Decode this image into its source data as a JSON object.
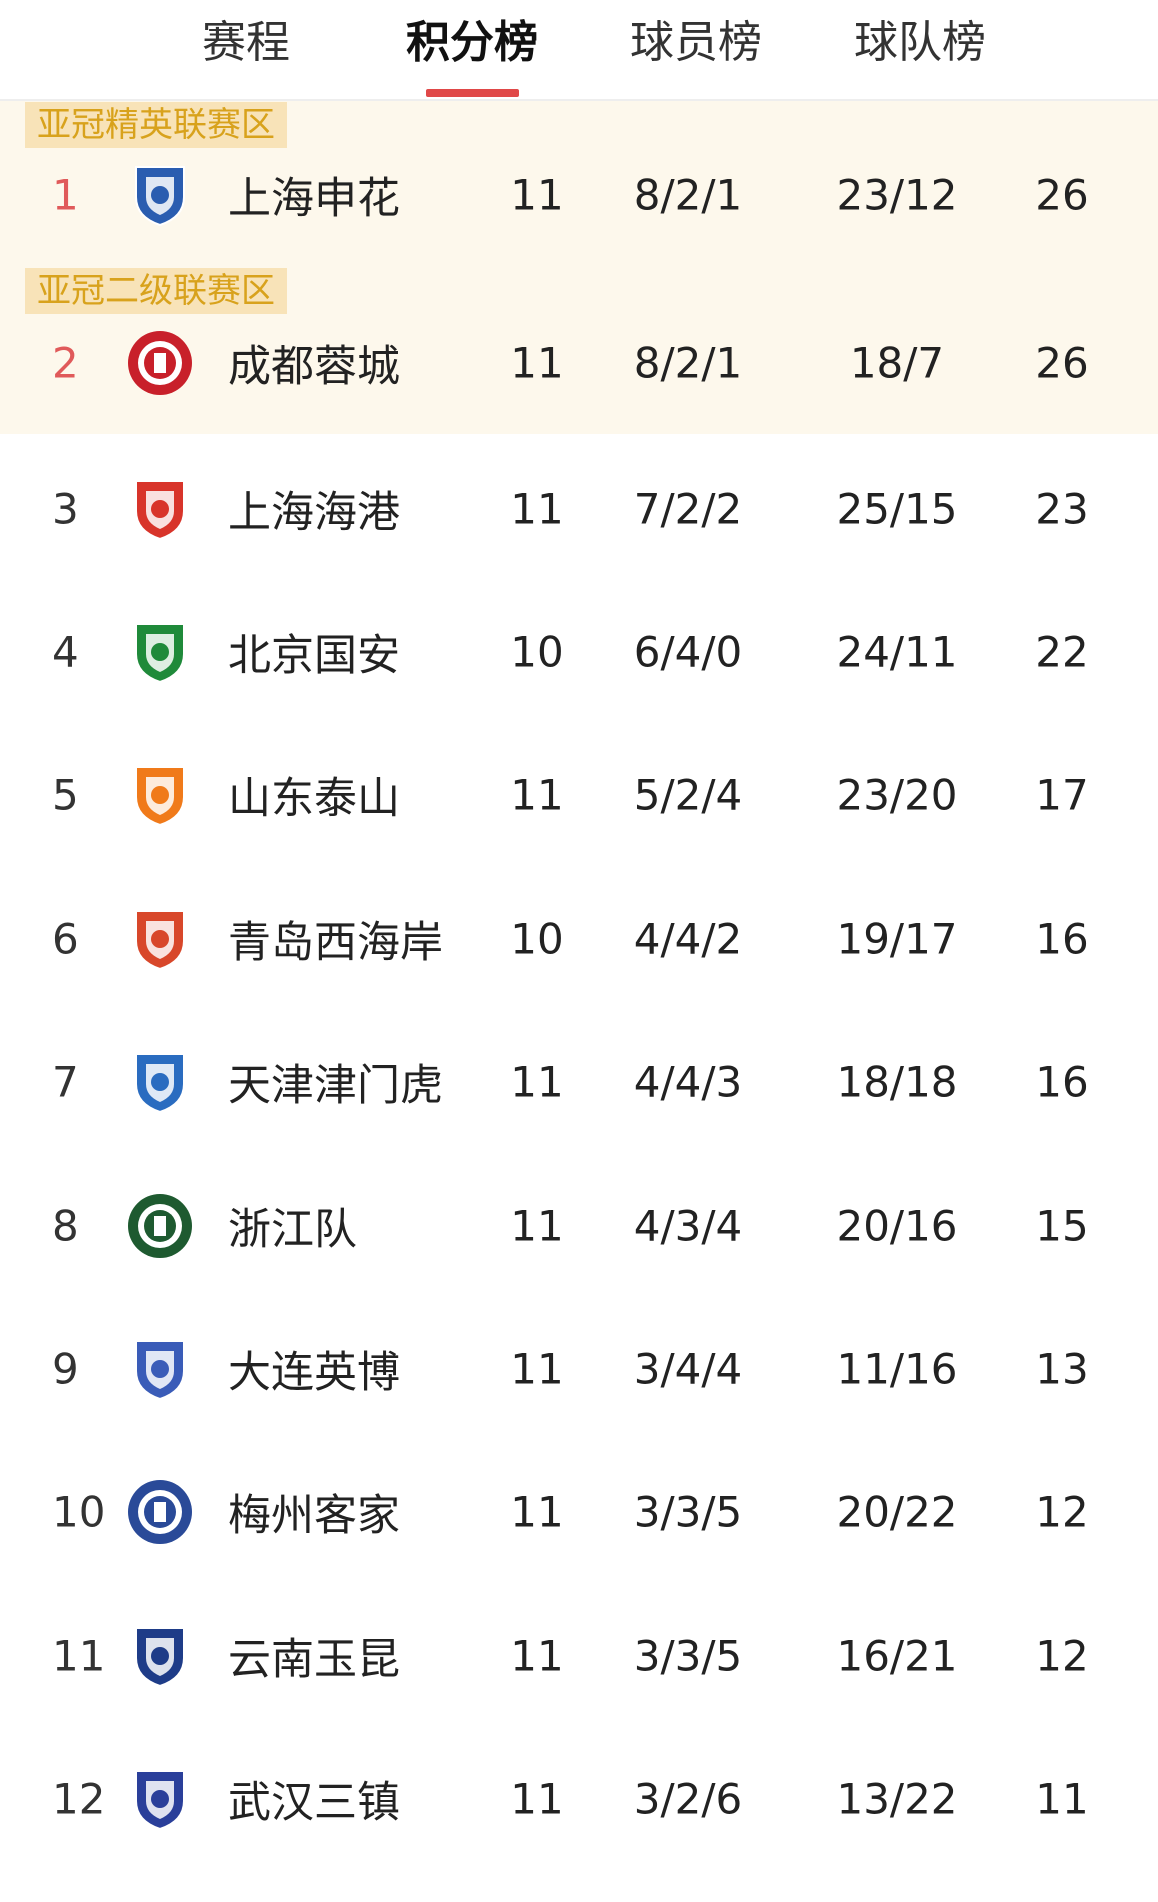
{
  "tabs": [
    {
      "label": "赛程",
      "active": false
    },
    {
      "label": "积分榜",
      "active": true
    },
    {
      "label": "球员榜",
      "active": false
    },
    {
      "label": "球队榜",
      "active": false
    }
  ],
  "zones": [
    {
      "label": "亚冠精英联赛区"
    },
    {
      "label": "亚冠二级联赛区"
    }
  ],
  "colors": {
    "accent": "#e04848",
    "zone_text": "#d8a21c",
    "zone_bg": "#f8e3b8",
    "highlight_bg": "#fdf8ec",
    "top_rank": "#e05a5a"
  },
  "standings": [
    {
      "rank": "1",
      "team": "上海申花",
      "played": "11",
      "wdl": "8/2/1",
      "goals": "23/12",
      "points": "26",
      "logo": "shenhua-crest-icon",
      "logo_color": "#2a5db0"
    },
    {
      "rank": "2",
      "team": "成都蓉城",
      "played": "11",
      "wdl": "8/2/1",
      "goals": "18/7",
      "points": "26",
      "logo": "chengdu-crest-icon",
      "logo_color": "#c8202a"
    },
    {
      "rank": "3",
      "team": "上海海港",
      "played": "11",
      "wdl": "7/2/2",
      "goals": "25/15",
      "points": "23",
      "logo": "haigang-crest-icon",
      "logo_color": "#d8342a"
    },
    {
      "rank": "4",
      "team": "北京国安",
      "played": "10",
      "wdl": "6/4/0",
      "goals": "24/11",
      "points": "22",
      "logo": "guoan-crest-icon",
      "logo_color": "#1f8a3a"
    },
    {
      "rank": "5",
      "team": "山东泰山",
      "played": "11",
      "wdl": "5/2/4",
      "goals": "23/20",
      "points": "17",
      "logo": "taishan-crest-icon",
      "logo_color": "#f07a1a"
    },
    {
      "rank": "6",
      "team": "青岛西海岸",
      "played": "10",
      "wdl": "4/4/2",
      "goals": "19/17",
      "points": "16",
      "logo": "qingdao-crest-icon",
      "logo_color": "#d8472a"
    },
    {
      "rank": "7",
      "team": "天津津门虎",
      "played": "11",
      "wdl": "4/4/3",
      "goals": "18/18",
      "points": "16",
      "logo": "tianjin-crest-icon",
      "logo_color": "#2a6cc0"
    },
    {
      "rank": "8",
      "team": "浙江队",
      "played": "11",
      "wdl": "4/3/4",
      "goals": "20/16",
      "points": "15",
      "logo": "zhejiang-crest-icon",
      "logo_color": "#1e5a30"
    },
    {
      "rank": "9",
      "team": "大连英博",
      "played": "11",
      "wdl": "3/4/4",
      "goals": "11/16",
      "points": "13",
      "logo": "dalian-crest-icon",
      "logo_color": "#3a5cb8"
    },
    {
      "rank": "10",
      "team": "梅州客家",
      "played": "11",
      "wdl": "3/3/5",
      "goals": "20/22",
      "points": "12",
      "logo": "meizhou-crest-icon",
      "logo_color": "#2a4a98"
    },
    {
      "rank": "11",
      "team": "云南玉昆",
      "played": "11",
      "wdl": "3/3/5",
      "goals": "16/21",
      "points": "12",
      "logo": "yunnan-crest-icon",
      "logo_color": "#1e3c88"
    },
    {
      "rank": "12",
      "team": "武汉三镇",
      "played": "11",
      "wdl": "3/2/6",
      "goals": "13/22",
      "points": "11",
      "logo": "wuhan-crest-icon",
      "logo_color": "#2a3f9a"
    }
  ]
}
